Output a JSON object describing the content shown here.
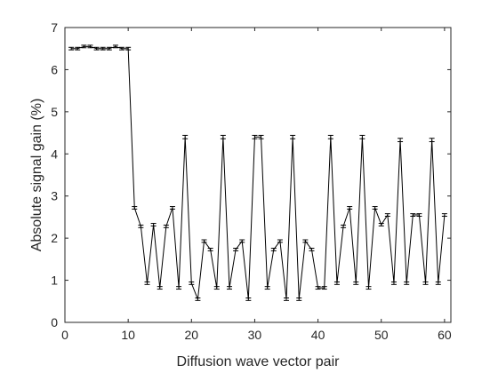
{
  "chart_data": {
    "type": "line",
    "xlabel": "Diffusion wave vector pair",
    "ylabel": "Absolute signal gain (%)",
    "xlim": [
      0,
      61
    ],
    "ylim": [
      0,
      7
    ],
    "xticks": [
      "0",
      "10",
      "20",
      "30",
      "40",
      "50",
      "60"
    ],
    "yticks": [
      "0",
      "1",
      "2",
      "3",
      "4",
      "5",
      "6",
      "7"
    ],
    "grid": false,
    "error_bars": true,
    "series": [
      {
        "color": "#000000",
        "x": [
          1,
          2,
          3,
          4,
          5,
          6,
          7,
          8,
          9,
          10,
          11,
          12,
          13,
          14,
          15,
          16,
          17,
          18,
          19,
          20,
          21,
          22,
          23,
          24,
          25,
          26,
          27,
          28,
          29,
          30,
          31,
          32,
          33,
          34,
          35,
          36,
          37,
          38,
          39,
          40,
          41,
          42,
          43,
          44,
          45,
          46,
          47,
          48,
          49,
          50,
          51,
          52,
          53,
          54,
          55,
          56,
          57,
          58,
          59,
          60
        ],
        "values": [
          6.5,
          6.5,
          6.55,
          6.55,
          6.5,
          6.5,
          6.5,
          6.55,
          6.5,
          6.5,
          2.72,
          2.28,
          0.93,
          2.32,
          0.82,
          2.28,
          2.72,
          0.82,
          4.4,
          0.93,
          0.55,
          1.93,
          1.73,
          0.82,
          4.4,
          0.82,
          1.73,
          1.93,
          0.55,
          4.4,
          4.4,
          0.82,
          1.73,
          1.93,
          0.55,
          4.4,
          0.55,
          1.93,
          1.73,
          0.82,
          0.82,
          4.4,
          0.93,
          2.28,
          2.72,
          0.93,
          4.4,
          0.82,
          2.72,
          2.32,
          2.55,
          0.93,
          4.33,
          0.93,
          2.55,
          2.55,
          0.93,
          4.33,
          0.93,
          2.55
        ],
        "error": [
          0.03,
          0.03,
          0.03,
          0.03,
          0.03,
          0.03,
          0.03,
          0.03,
          0.03,
          0.03,
          0.03,
          0.03,
          0.03,
          0.03,
          0.03,
          0.03,
          0.03,
          0.03,
          0.04,
          0.03,
          0.03,
          0.03,
          0.03,
          0.03,
          0.04,
          0.03,
          0.03,
          0.03,
          0.03,
          0.04,
          0.04,
          0.03,
          0.03,
          0.03,
          0.03,
          0.04,
          0.03,
          0.03,
          0.03,
          0.03,
          0.03,
          0.04,
          0.03,
          0.03,
          0.03,
          0.03,
          0.04,
          0.03,
          0.03,
          0.03,
          0.03,
          0.03,
          0.04,
          0.03,
          0.03,
          0.03,
          0.03,
          0.04,
          0.03,
          0.03
        ]
      }
    ]
  }
}
